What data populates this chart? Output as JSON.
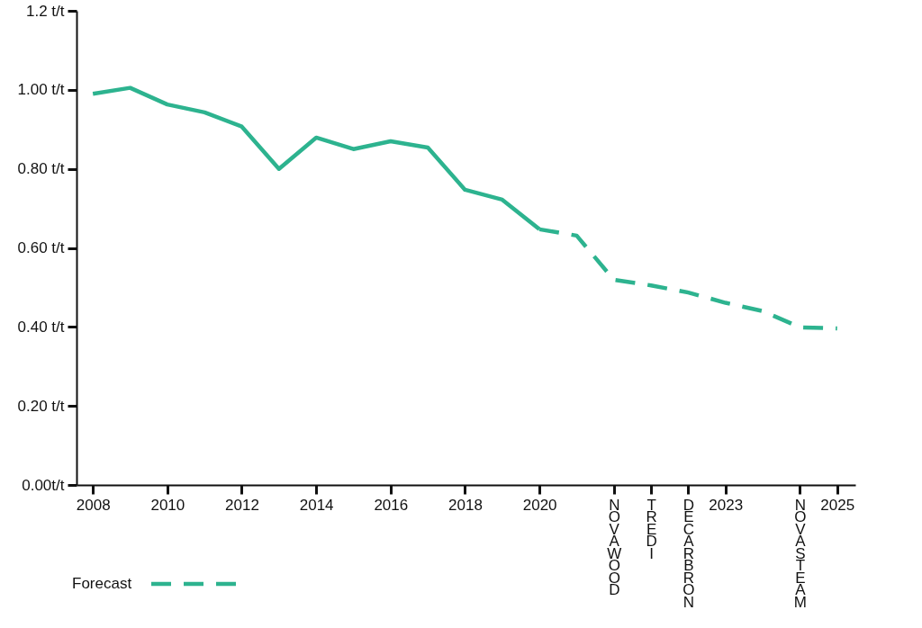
{
  "chart_data": {
    "type": "line",
    "categories": [
      "2008",
      null,
      "2010",
      null,
      "2012",
      null,
      "2014",
      null,
      "2016",
      null,
      "2018",
      null,
      "2020",
      null,
      "NOVAWOOD",
      "TREDI",
      "DECARBRON",
      "2023",
      null,
      "NOVASTEAM",
      "2025"
    ],
    "series": [
      {
        "color": "#2db38f",
        "line_style": "solid",
        "values": [
          0.99,
          1.005,
          0.963,
          0.943,
          0.907,
          0.8,
          0.879,
          0.85,
          0.87,
          0.854,
          0.747,
          0.722,
          0.647,
          null,
          null,
          null,
          null,
          null,
          null,
          null,
          null
        ]
      },
      {
        "name": "Forecast",
        "color": "#2db38f",
        "line_style": "dashed",
        "values": [
          null,
          null,
          null,
          null,
          null,
          null,
          null,
          null,
          null,
          null,
          null,
          null,
          0.647,
          0.631,
          0.519,
          0.505,
          0.487,
          0.461,
          0.44,
          0.399,
          0.396
        ]
      }
    ],
    "ylim": [
      0,
      1.2
    ],
    "yticks": [
      {
        "value": 0,
        "label": "0.00t/t"
      },
      {
        "value": 0.2,
        "label": "0.20 t/t"
      },
      {
        "value": 0.4,
        "label": "0.40 t/t"
      },
      {
        "value": 0.6,
        "label": "0.60 t/t"
      },
      {
        "value": 0.8,
        "label": "0.80 t/t"
      },
      {
        "value": 1.0,
        "label": "1.00 t/t"
      },
      {
        "value": 1.2,
        "label": "1.2 t/t"
      }
    ],
    "grid": false,
    "legend": "bottom left"
  }
}
